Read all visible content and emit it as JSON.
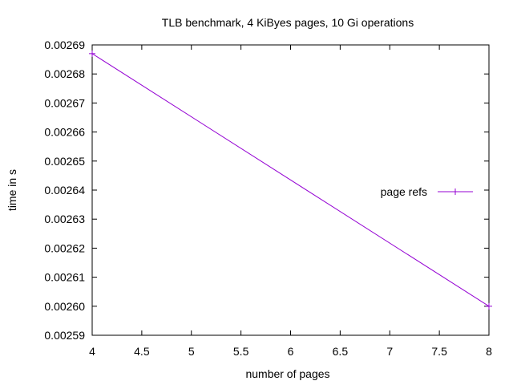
{
  "chart_data": {
    "type": "line",
    "title": "TLB benchmark, 4 KiByes pages, 10 Gi operations",
    "xlabel": "number of pages",
    "ylabel": "time in s",
    "xlim": [
      4,
      8
    ],
    "ylim": [
      0.00259,
      0.00269
    ],
    "xticks": [
      4,
      4.5,
      5,
      5.5,
      6,
      6.5,
      7,
      7.5,
      8
    ],
    "xtick_labels": [
      "4",
      "4.5",
      "5",
      "5.5",
      "6",
      "6.5",
      "7",
      "7.5",
      "8"
    ],
    "yticks": [
      0.00259,
      0.0026,
      0.00261,
      0.00262,
      0.00263,
      0.00264,
      0.00265,
      0.00266,
      0.00267,
      0.00268,
      0.00269
    ],
    "ytick_labels": [
      "0.00259",
      "0.00260",
      "0.00261",
      "0.00262",
      "0.00263",
      "0.00264",
      "0.00265",
      "0.00266",
      "0.00267",
      "0.00268",
      "0.00269"
    ],
    "grid": false,
    "legend_position": "right",
    "series": [
      {
        "name": "page refs",
        "color": "#9400d3",
        "marker": "plus",
        "x": [
          4,
          8
        ],
        "y": [
          0.002687,
          0.0026
        ]
      }
    ]
  }
}
